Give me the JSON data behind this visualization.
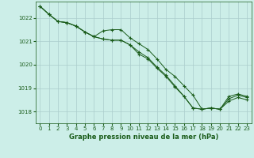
{
  "background_color": "#cceee8",
  "grid_color": "#aacccc",
  "line_color": "#1a5c1a",
  "title": "Graphe pression niveau de la mer (hPa)",
  "xlim": [
    -0.5,
    23.5
  ],
  "ylim": [
    1017.5,
    1022.7
  ],
  "yticks": [
    1018,
    1019,
    1020,
    1021,
    1022
  ],
  "xticks": [
    0,
    1,
    2,
    3,
    4,
    5,
    6,
    7,
    8,
    9,
    10,
    11,
    12,
    13,
    14,
    15,
    16,
    17,
    18,
    19,
    20,
    21,
    22,
    23
  ],
  "series": [
    [
      1022.5,
      1022.15,
      1021.85,
      1021.8,
      1021.65,
      1021.4,
      1021.2,
      1021.45,
      1021.5,
      1021.5,
      1021.15,
      1020.9,
      1020.65,
      1020.25,
      1019.8,
      1019.5,
      1019.1,
      1018.7,
      1018.1,
      1018.15,
      1018.1,
      1018.65,
      1018.75,
      1018.65
    ],
    [
      1022.5,
      1022.15,
      1021.85,
      1021.8,
      1021.65,
      1021.4,
      1021.2,
      1021.1,
      1021.05,
      1021.05,
      1020.85,
      1020.55,
      1020.3,
      1019.9,
      1019.55,
      1019.1,
      1018.65,
      1018.15,
      1018.1,
      1018.15,
      1018.1,
      1018.55,
      1018.7,
      1018.6
    ],
    [
      1022.5,
      1022.15,
      1021.85,
      1021.8,
      1021.65,
      1021.4,
      1021.2,
      1021.1,
      1021.05,
      1021.05,
      1020.85,
      1020.45,
      1020.25,
      1019.85,
      1019.5,
      1019.05,
      1018.65,
      1018.15,
      1018.1,
      1018.15,
      1018.1,
      1018.45,
      1018.6,
      1018.5
    ]
  ]
}
